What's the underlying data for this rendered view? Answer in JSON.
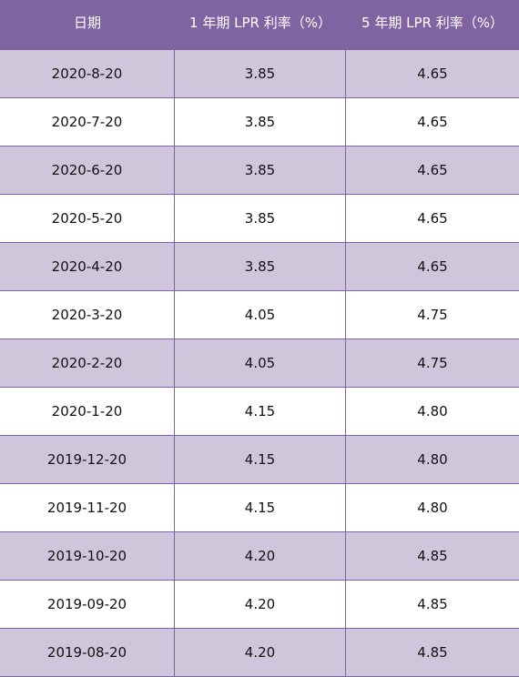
{
  "table": {
    "headers": [
      "日期",
      "1 年期 LPR 利率（%）",
      "5 年期 LPR 利率（%）"
    ],
    "rows": [
      [
        "2020-8-20",
        "3.85",
        "4.65"
      ],
      [
        "2020-7-20",
        "3.85",
        "4.65"
      ],
      [
        "2020-6-20",
        "3.85",
        "4.65"
      ],
      [
        "2020-5-20",
        "3.85",
        "4.65"
      ],
      [
        "2020-4-20",
        "3.85",
        "4.65"
      ],
      [
        "2020-3-20",
        "4.05",
        "4.75"
      ],
      [
        "2020-2-20",
        "4.05",
        "4.75"
      ],
      [
        "2020-1-20",
        "4.15",
        "4.80"
      ],
      [
        "2019-12-20",
        "4.15",
        "4.80"
      ],
      [
        "2019-11-20",
        "4.15",
        "4.80"
      ],
      [
        "2019-10-20",
        "4.20",
        "4.85"
      ],
      [
        "2019-09-20",
        "4.20",
        "4.85"
      ],
      [
        "2019-08-20",
        "4.20",
        "4.85"
      ]
    ]
  },
  "colors": {
    "header_bg": "#8064a2",
    "band_bg": "#d0c6dc"
  }
}
